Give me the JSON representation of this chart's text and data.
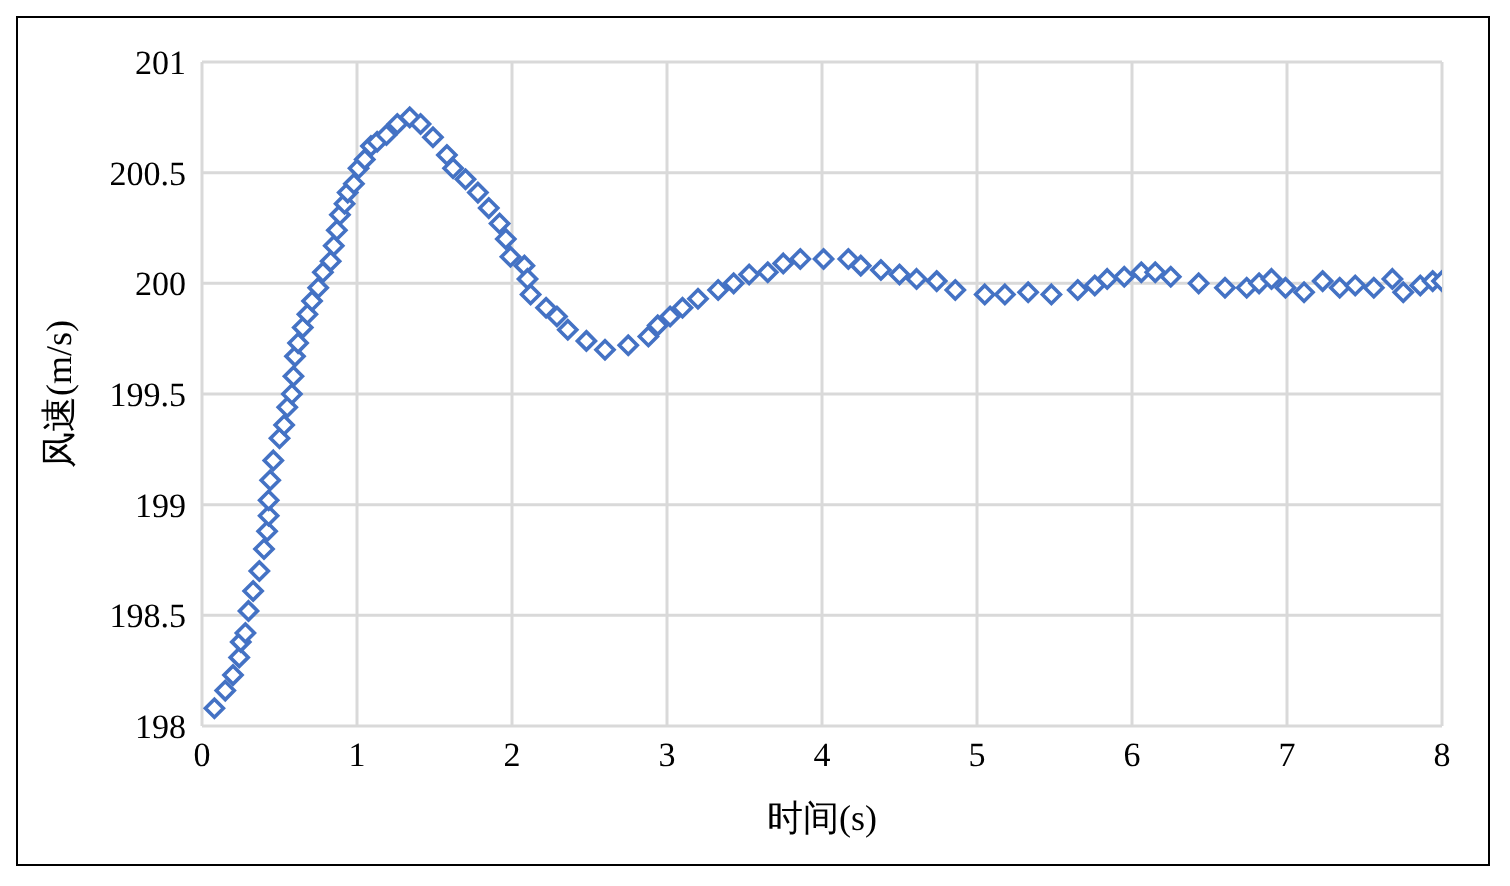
{
  "chart_data": {
    "type": "scatter",
    "xlabel": "时间(s)",
    "ylabel": "风速(m/s)",
    "xlim": [
      0,
      8
    ],
    "xticks": [
      0,
      1,
      2,
      3,
      4,
      5,
      6,
      7,
      8
    ],
    "ylim": [
      198,
      201
    ],
    "yticks": [
      198,
      198.5,
      199,
      199.5,
      200,
      200.5,
      201
    ],
    "grid": true,
    "marker": "diamond",
    "legend": false,
    "series": [
      {
        "color": "#4472c4",
        "x": [
          0.08,
          0.15,
          0.2,
          0.24,
          0.25,
          0.28,
          0.3,
          0.33,
          0.37,
          0.4,
          0.42,
          0.43,
          0.43,
          0.44,
          0.46,
          0.5,
          0.53,
          0.55,
          0.58,
          0.59,
          0.6,
          0.62,
          0.65,
          0.68,
          0.71,
          0.75,
          0.78,
          0.83,
          0.85,
          0.87,
          0.89,
          0.92,
          0.94,
          0.98,
          1.01,
          1.05,
          1.09,
          1.13,
          1.19,
          1.26,
          1.34,
          1.41,
          1.49,
          1.58,
          1.62,
          1.7,
          1.78,
          1.85,
          1.92,
          1.96,
          1.99,
          2.08,
          2.1,
          2.12,
          2.22,
          2.29,
          2.36,
          2.48,
          2.6,
          2.75,
          2.88,
          2.94,
          3.02,
          3.1,
          3.2,
          3.33,
          3.43,
          3.53,
          3.65,
          3.75,
          3.86,
          4.01,
          4.17,
          4.25,
          4.38,
          4.5,
          4.61,
          4.74,
          4.86,
          5.05,
          5.18,
          5.33,
          5.48,
          5.65,
          5.76,
          5.84,
          5.95,
          6.06,
          6.15,
          6.25,
          6.43,
          6.6,
          6.74,
          6.82,
          6.9,
          6.99,
          7.11,
          7.23,
          7.34,
          7.44,
          7.56,
          7.68,
          7.75,
          7.86,
          7.94,
          8.0
        ],
        "values": [
          198.08,
          198.16,
          198.23,
          198.31,
          198.38,
          198.42,
          198.52,
          198.61,
          198.7,
          198.8,
          198.88,
          198.95,
          199.02,
          199.11,
          199.2,
          199.3,
          199.36,
          199.44,
          199.5,
          199.58,
          199.67,
          199.73,
          199.8,
          199.86,
          199.92,
          199.98,
          200.05,
          200.1,
          200.17,
          200.24,
          200.31,
          200.36,
          200.41,
          200.45,
          200.52,
          200.56,
          200.62,
          200.64,
          200.67,
          200.72,
          200.75,
          200.72,
          200.66,
          200.58,
          200.52,
          200.47,
          200.41,
          200.34,
          200.27,
          200.2,
          200.12,
          200.08,
          200.02,
          199.95,
          199.89,
          199.85,
          199.79,
          199.74,
          199.7,
          199.72,
          199.76,
          199.81,
          199.85,
          199.89,
          199.93,
          199.97,
          200.0,
          200.04,
          200.05,
          200.09,
          200.11,
          200.11,
          200.11,
          200.08,
          200.06,
          200.04,
          200.02,
          200.01,
          199.97,
          199.95,
          199.95,
          199.96,
          199.95,
          199.97,
          199.99,
          200.02,
          200.03,
          200.05,
          200.05,
          200.03,
          200.0,
          199.98,
          199.98,
          200.0,
          200.02,
          199.98,
          199.96,
          200.01,
          199.98,
          199.99,
          199.98,
          200.02,
          199.96,
          199.99,
          200.01,
          200.01
        ]
      }
    ]
  }
}
